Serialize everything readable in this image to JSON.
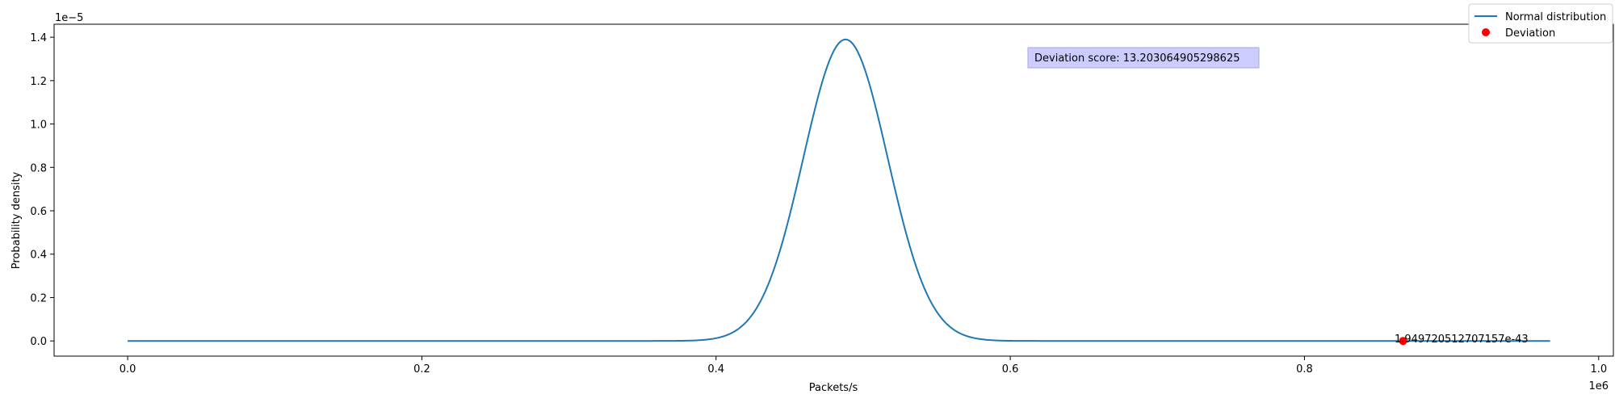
{
  "chart_data": {
    "type": "line",
    "title": "",
    "xlabel": "Packets/s",
    "ylabel": "Probability density",
    "x_offset_label": "1e6",
    "y_offset_label": "1e−5",
    "xlim": [
      -0.05,
      1.01
    ],
    "ylim": [
      -0.07,
      1.46
    ],
    "x_ticks": [
      0.0,
      0.2,
      0.4,
      0.6,
      0.8,
      1.0
    ],
    "x_tick_labels": [
      "0.0",
      "0.2",
      "0.4",
      "0.6",
      "0.8",
      "1.0"
    ],
    "y_ticks": [
      0.0,
      0.2,
      0.4,
      0.6,
      0.8,
      1.0,
      1.2,
      1.4
    ],
    "y_tick_labels": [
      "0.0",
      "0.2",
      "0.4",
      "0.6",
      "0.8",
      "1.0",
      "1.2",
      "1.4"
    ],
    "grid": false,
    "legend_position": "top-right",
    "series": [
      {
        "name": "Normal distribution",
        "kind": "line",
        "color": "#1f77b4",
        "distribution": {
          "mean": 0.488,
          "std": 0.0287,
          "x_min": 0.0,
          "x_max": 0.967
        }
      },
      {
        "name": "Deviation",
        "kind": "scatter",
        "color": "#ff0000",
        "points": [
          {
            "x": 0.867,
            "y": 0.0
          }
        ]
      }
    ],
    "annotations": {
      "point_label": "1.949720512707157e-43",
      "score_box": "Deviation score: 13.203064905298625",
      "score_box_color": "#ccccff"
    }
  }
}
